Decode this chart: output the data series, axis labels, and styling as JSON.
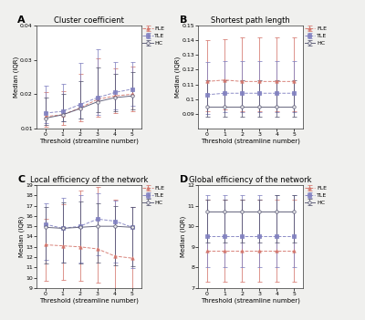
{
  "subplots": [
    {
      "label": "A",
      "title": "Cluster coefficient",
      "ylabel": "Median (IQR)",
      "xlabel": "Threshold (streamline number)",
      "ylim": [
        0.01,
        0.04
      ],
      "yticks": [
        0.01,
        0.02,
        0.03,
        0.04
      ],
      "series": [
        {
          "name": "FLE",
          "color": "#d4756b",
          "linestyle": "--",
          "marker": "^",
          "x": [
            0,
            1,
            2,
            3,
            4,
            5
          ],
          "y": [
            0.0135,
            0.014,
            0.016,
            0.0185,
            0.0195,
            0.02
          ],
          "yerr_low": [
            0.003,
            0.003,
            0.004,
            0.005,
            0.005,
            0.005
          ],
          "yerr_high": [
            0.007,
            0.007,
            0.01,
            0.012,
            0.008,
            0.008
          ]
        },
        {
          "name": "TLE",
          "color": "#8080c0",
          "linestyle": "--",
          "marker": "s",
          "x": [
            0,
            1,
            2,
            3,
            4,
            5
          ],
          "y": [
            0.0145,
            0.015,
            0.017,
            0.019,
            0.0205,
            0.0215
          ],
          "yerr_low": [
            0.003,
            0.003,
            0.004,
            0.005,
            0.005,
            0.005
          ],
          "yerr_high": [
            0.008,
            0.008,
            0.012,
            0.014,
            0.009,
            0.008
          ]
        },
        {
          "name": "HC",
          "color": "#555570",
          "linestyle": "-",
          "marker": "o",
          "x": [
            0,
            1,
            2,
            3,
            4,
            5
          ],
          "y": [
            0.013,
            0.014,
            0.0158,
            0.0178,
            0.019,
            0.0195
          ],
          "yerr_low": [
            0.002,
            0.002,
            0.003,
            0.003,
            0.004,
            0.004
          ],
          "yerr_high": [
            0.006,
            0.006,
            0.008,
            0.01,
            0.007,
            0.007
          ]
        }
      ]
    },
    {
      "label": "B",
      "title": "Shortest path length",
      "ylabel": "Median (IQR)",
      "xlabel": "Threshold (streamline number)",
      "ylim": [
        0.08,
        0.15
      ],
      "yticks": [
        0.09,
        0.1,
        0.11,
        0.12,
        0.13,
        0.14,
        0.15
      ],
      "series": [
        {
          "name": "FLE",
          "color": "#d4756b",
          "linestyle": "--",
          "marker": "^",
          "x": [
            0,
            1,
            2,
            3,
            4,
            5
          ],
          "y": [
            0.112,
            0.113,
            0.112,
            0.112,
            0.112,
            0.112
          ],
          "yerr_low": [
            0.02,
            0.02,
            0.02,
            0.02,
            0.02,
            0.02
          ],
          "yerr_high": [
            0.028,
            0.028,
            0.03,
            0.03,
            0.03,
            0.03
          ]
        },
        {
          "name": "TLE",
          "color": "#8080c0",
          "linestyle": "--",
          "marker": "s",
          "x": [
            0,
            1,
            2,
            3,
            4,
            5
          ],
          "y": [
            0.103,
            0.104,
            0.104,
            0.104,
            0.104,
            0.104
          ],
          "yerr_low": [
            0.013,
            0.013,
            0.013,
            0.013,
            0.013,
            0.013
          ],
          "yerr_high": [
            0.022,
            0.022,
            0.022,
            0.022,
            0.022,
            0.022
          ]
        },
        {
          "name": "HC",
          "color": "#555570",
          "linestyle": "-",
          "marker": "o",
          "x": [
            0,
            1,
            2,
            3,
            4,
            5
          ],
          "y": [
            0.095,
            0.095,
            0.095,
            0.095,
            0.095,
            0.095
          ],
          "yerr_low": [
            0.007,
            0.007,
            0.007,
            0.007,
            0.007,
            0.007
          ],
          "yerr_high": [
            0.018,
            0.018,
            0.018,
            0.018,
            0.018,
            0.018
          ]
        }
      ]
    },
    {
      "label": "C",
      "title": "Local efficiency of the network",
      "ylabel": "Median (IQR)",
      "xlabel": "Threshold (streamline number)",
      "ylim": [
        9,
        19
      ],
      "yticks": [
        9,
        10,
        11,
        12,
        13,
        14,
        15,
        16,
        17,
        18,
        19
      ],
      "series": [
        {
          "name": "FLE",
          "color": "#d4756b",
          "linestyle": "--",
          "marker": "^",
          "x": [
            0,
            1,
            2,
            3,
            4,
            5
          ],
          "y": [
            13.2,
            13.1,
            13.0,
            12.8,
            12.1,
            11.9
          ],
          "yerr_low": [
            3.5,
            3.3,
            3.3,
            3.3,
            3.3,
            3.0
          ],
          "yerr_high": [
            2.5,
            4.0,
            5.5,
            6.0,
            5.5,
            5.0
          ]
        },
        {
          "name": "TLE",
          "color": "#8080c0",
          "linestyle": "--",
          "marker": "s",
          "x": [
            0,
            1,
            2,
            3,
            4,
            5
          ],
          "y": [
            15.2,
            14.8,
            15.0,
            15.7,
            15.5,
            14.9
          ],
          "yerr_low": [
            3.5,
            3.3,
            3.5,
            3.5,
            4.0,
            4.0
          ],
          "yerr_high": [
            2.0,
            3.0,
            3.0,
            2.5,
            2.0,
            2.0
          ]
        },
        {
          "name": "HC",
          "color": "#555570",
          "linestyle": "-",
          "marker": "o",
          "x": [
            0,
            1,
            2,
            3,
            4,
            5
          ],
          "y": [
            14.9,
            14.8,
            14.9,
            15.0,
            15.0,
            14.9
          ],
          "yerr_low": [
            3.5,
            3.3,
            3.5,
            3.5,
            3.8,
            3.8
          ],
          "yerr_high": [
            2.0,
            2.5,
            2.5,
            2.2,
            2.0,
            2.0
          ]
        }
      ]
    },
    {
      "label": "D",
      "title": "Global efficiency of the network",
      "ylabel": "Median (IQR)",
      "xlabel": "Threshold (streamline number)",
      "ylim": [
        7,
        12
      ],
      "yticks": [
        7,
        8,
        9,
        10,
        11,
        12
      ],
      "series": [
        {
          "name": "FLE",
          "color": "#d4756b",
          "linestyle": "--",
          "marker": "^",
          "x": [
            0,
            1,
            2,
            3,
            4,
            5
          ],
          "y": [
            8.8,
            8.8,
            8.8,
            8.8,
            8.8,
            8.8
          ],
          "yerr_low": [
            1.5,
            1.5,
            1.5,
            1.5,
            1.5,
            1.5
          ],
          "yerr_high": [
            2.5,
            2.5,
            2.5,
            2.5,
            2.5,
            2.5
          ]
        },
        {
          "name": "TLE",
          "color": "#8080c0",
          "linestyle": "--",
          "marker": "s",
          "x": [
            0,
            1,
            2,
            3,
            4,
            5
          ],
          "y": [
            9.5,
            9.5,
            9.5,
            9.5,
            9.5,
            9.5
          ],
          "yerr_low": [
            1.5,
            1.5,
            1.5,
            1.5,
            1.5,
            1.5
          ],
          "yerr_high": [
            2.0,
            2.0,
            2.0,
            2.0,
            2.0,
            2.0
          ]
        },
        {
          "name": "HC",
          "color": "#555570",
          "linestyle": "-",
          "marker": "o",
          "x": [
            0,
            1,
            2,
            3,
            4,
            5
          ],
          "y": [
            10.7,
            10.7,
            10.7,
            10.7,
            10.7,
            10.7
          ],
          "yerr_low": [
            1.5,
            1.5,
            1.5,
            1.5,
            1.5,
            1.5
          ],
          "yerr_high": [
            0.6,
            0.6,
            0.6,
            0.6,
            0.8,
            0.8
          ]
        }
      ]
    }
  ],
  "fig_bg": "#f0f0ee",
  "panel_bg": "#ffffff"
}
